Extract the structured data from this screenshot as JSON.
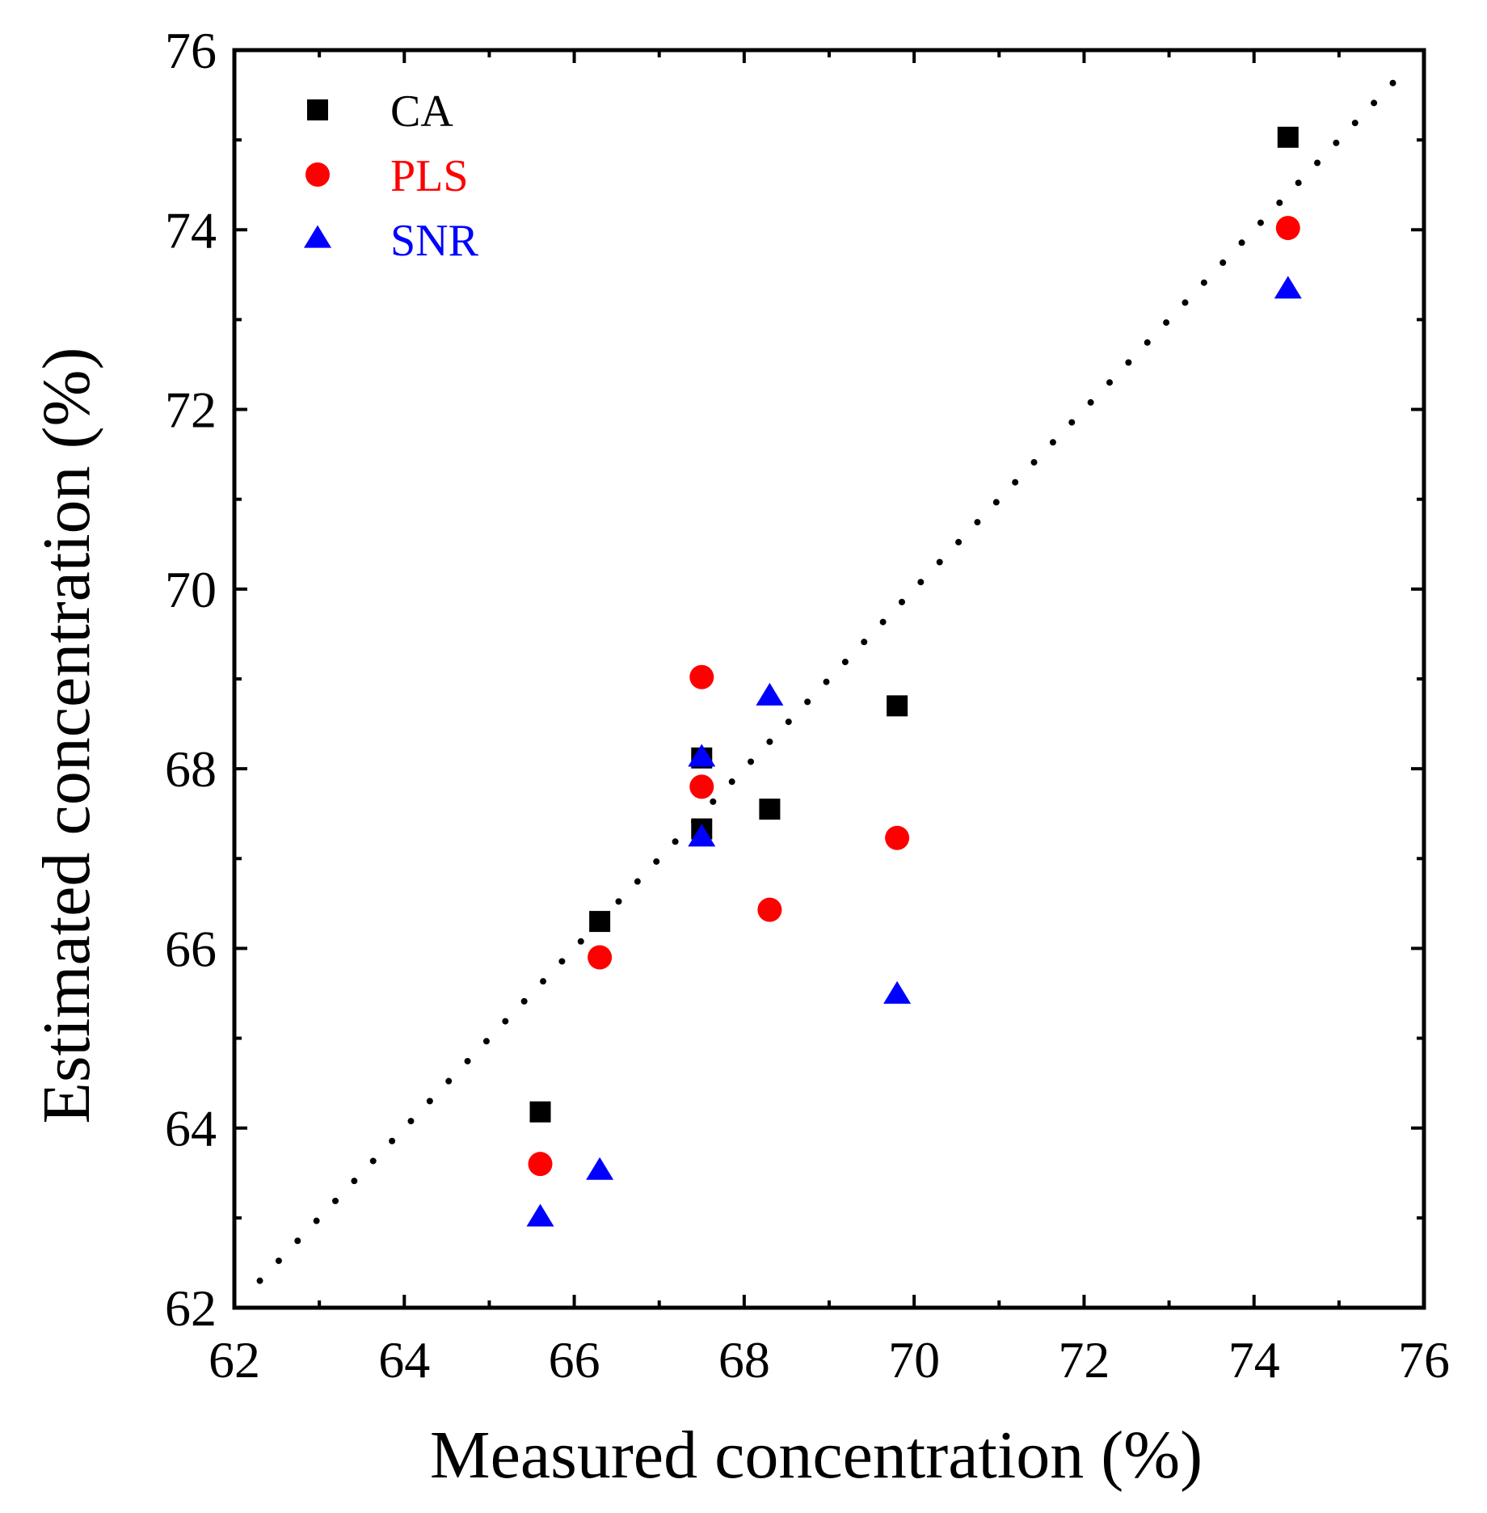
{
  "chart_data": {
    "type": "scatter",
    "xlabel": "Measured concentration (%)",
    "ylabel": "Estimated concentration (%)",
    "xlim": [
      62,
      76
    ],
    "ylim": [
      62,
      76
    ],
    "x_ticks": [
      "62",
      "64",
      "66",
      "68",
      "70",
      "72",
      "74",
      "76"
    ],
    "y_ticks": [
      "62",
      "64",
      "66",
      "68",
      "70",
      "72",
      "74",
      "76"
    ],
    "grid": false,
    "legend_position": "top-left",
    "reference_line": {
      "style": "dotted",
      "from": [
        62.3,
        62.3
      ],
      "to": [
        75.8,
        75.8
      ],
      "color": "#000000"
    },
    "series": [
      {
        "name": "CA",
        "marker": "square",
        "color": "#000000",
        "points": [
          {
            "x": 65.6,
            "y": 64.18
          },
          {
            "x": 66.3,
            "y": 66.3
          },
          {
            "x": 67.5,
            "y": 68.12
          },
          {
            "x": 67.5,
            "y": 67.33
          },
          {
            "x": 68.3,
            "y": 67.55
          },
          {
            "x": 69.8,
            "y": 68.7
          },
          {
            "x": 74.4,
            "y": 75.03
          }
        ]
      },
      {
        "name": "PLS",
        "marker": "circle",
        "color": "#ff0000",
        "points": [
          {
            "x": 65.6,
            "y": 63.6
          },
          {
            "x": 66.3,
            "y": 65.9
          },
          {
            "x": 67.5,
            "y": 69.02
          },
          {
            "x": 67.5,
            "y": 67.8
          },
          {
            "x": 68.3,
            "y": 66.43
          },
          {
            "x": 69.8,
            "y": 67.23
          },
          {
            "x": 74.4,
            "y": 74.02
          }
        ]
      },
      {
        "name": "SNR",
        "marker": "triangle",
        "color": "#0000ff",
        "points": [
          {
            "x": 65.6,
            "y": 63.0
          },
          {
            "x": 66.3,
            "y": 63.52
          },
          {
            "x": 67.5,
            "y": 68.12
          },
          {
            "x": 67.5,
            "y": 67.23
          },
          {
            "x": 68.3,
            "y": 68.8
          },
          {
            "x": 69.8,
            "y": 65.48
          },
          {
            "x": 74.4,
            "y": 73.33
          }
        ]
      }
    ]
  }
}
